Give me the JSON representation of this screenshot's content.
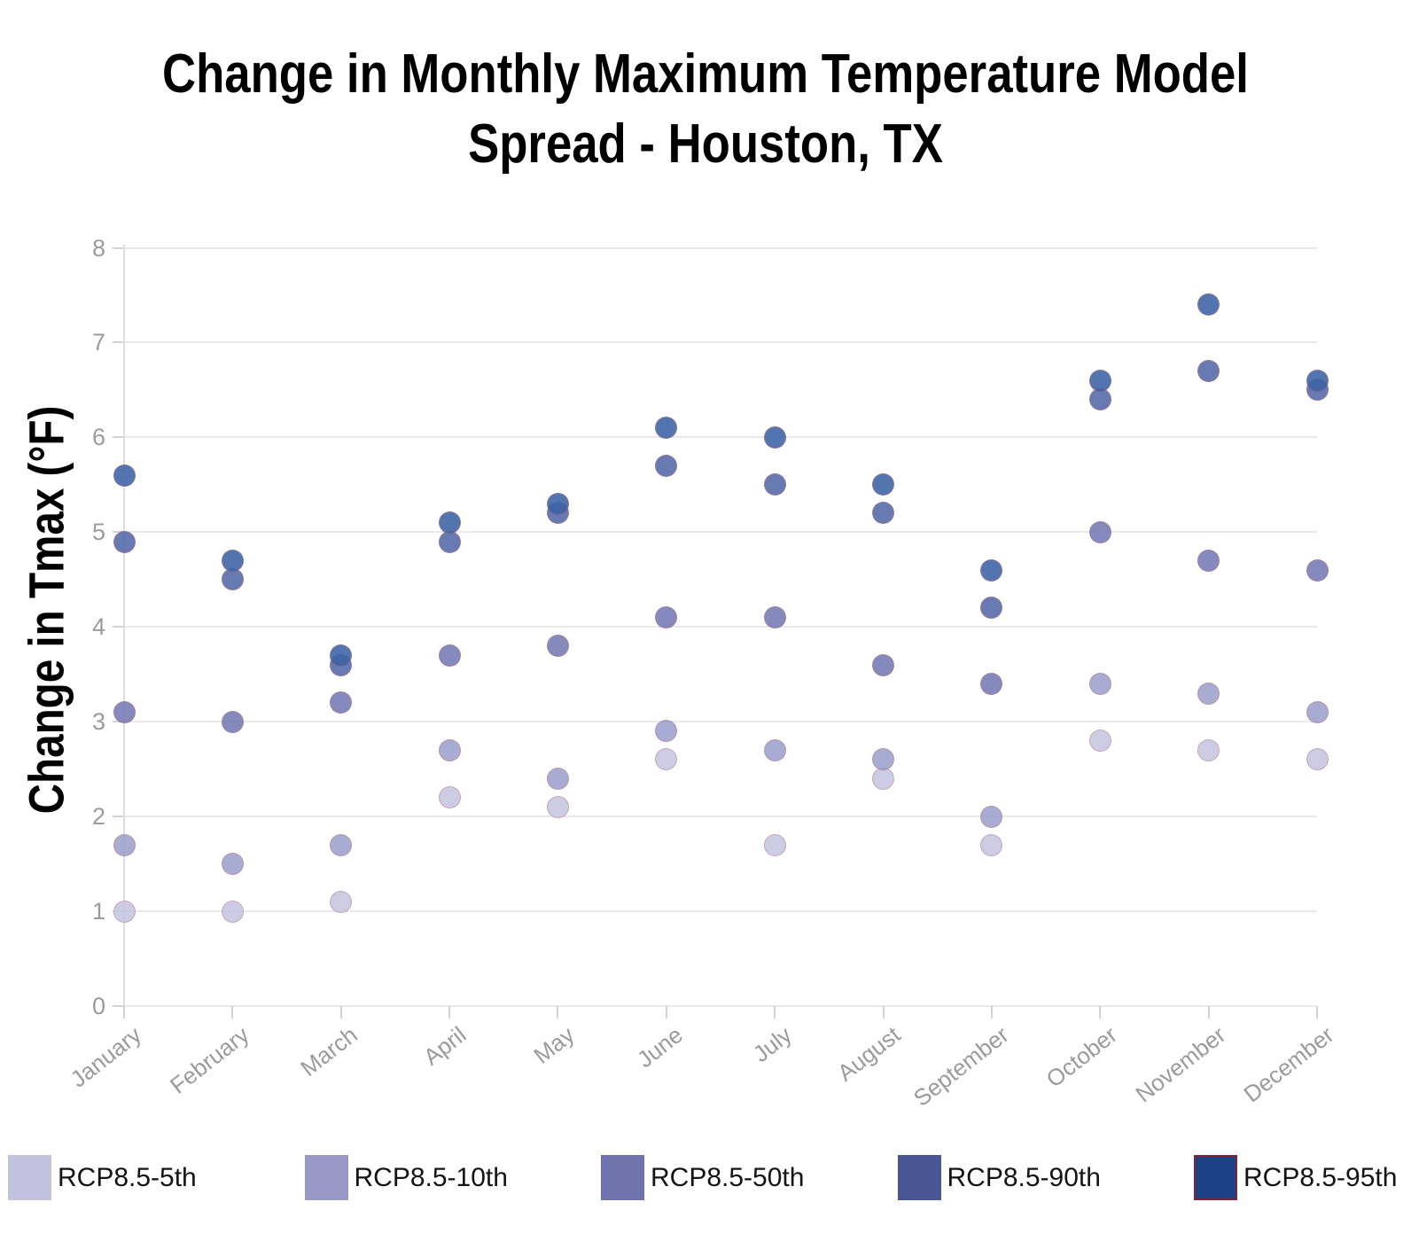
{
  "header": {
    "title_line1": "Change in Monthly Maximum Temperature Model",
    "title_line2": "Spread - Houston, TX"
  },
  "chart_data": {
    "type": "scatter",
    "title": "Change in Monthly Maximum Temperature Model Spread - Houston, TX",
    "xlabel": "",
    "ylabel": "Change in Tmax (°F)",
    "ylim": [
      0,
      8
    ],
    "yticks": [
      0,
      1,
      2,
      3,
      4,
      5,
      6,
      7,
      8
    ],
    "grid": true,
    "legend_position": "bottom",
    "categories": [
      "January",
      "February",
      "March",
      "April",
      "May",
      "June",
      "July",
      "August",
      "September",
      "October",
      "November",
      "December"
    ],
    "series": [
      {
        "name": "RCP8.5-5th",
        "legend_color": "#c3c2de",
        "marker_color": "#c5c5e2",
        "values": [
          1.0,
          1.0,
          1.1,
          2.2,
          2.1,
          2.6,
          1.7,
          2.4,
          1.7,
          2.8,
          2.7,
          2.6
        ]
      },
      {
        "name": "RCP8.5-10th",
        "legend_color": "#9899c5",
        "marker_color": "#9da0cc",
        "values": [
          1.7,
          1.5,
          1.7,
          2.7,
          2.4,
          2.9,
          2.7,
          2.6,
          2.0,
          3.4,
          3.3,
          3.1
        ]
      },
      {
        "name": "RCP8.5-50th",
        "legend_color": "#6e73ae",
        "marker_color": "#747ab4",
        "values": [
          3.1,
          3.0,
          3.2,
          3.7,
          3.8,
          4.1,
          4.1,
          3.6,
          3.4,
          5.0,
          4.7,
          4.6
        ]
      },
      {
        "name": "RCP8.5-90th",
        "legend_color": "#495694",
        "marker_color": "#5468a8",
        "values": [
          4.9,
          4.5,
          3.6,
          4.9,
          5.2,
          5.7,
          5.5,
          5.2,
          4.2,
          6.4,
          6.7,
          6.5
        ]
      },
      {
        "name": "RCP8.5-95th",
        "legend_color": "#1c4184",
        "marker_color": "#3c63a5",
        "values": [
          5.6,
          4.7,
          3.7,
          5.1,
          5.3,
          6.1,
          6.0,
          5.5,
          4.6,
          6.6,
          7.4,
          6.6
        ]
      }
    ],
    "marker_outline_color": "#be646e",
    "legend_95th_outline_color": "#7d2439",
    "axis_text_color": "#9b9b9f",
    "gridline_color": "#e9e9ec"
  }
}
